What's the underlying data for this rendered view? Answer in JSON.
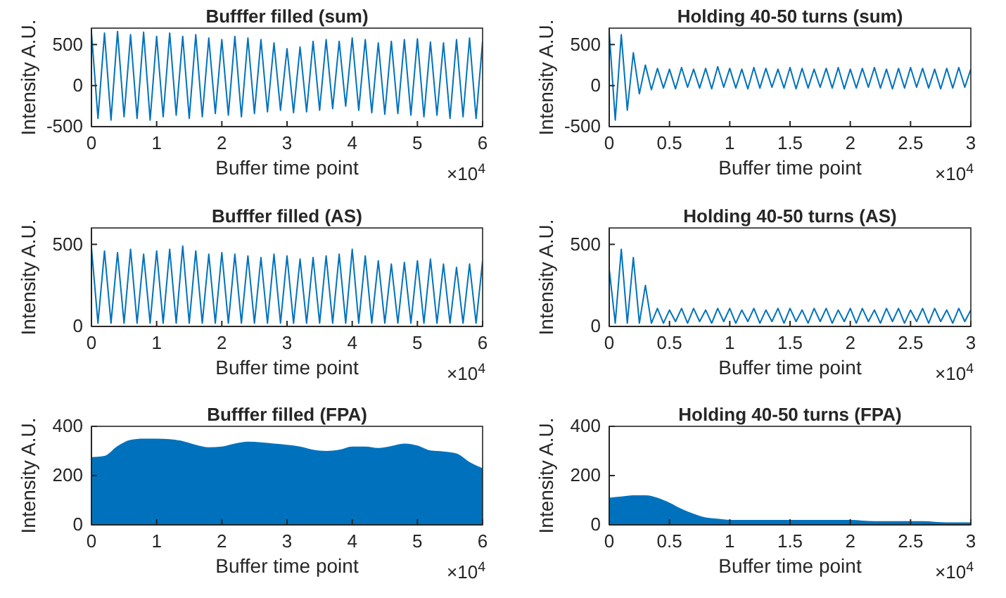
{
  "chart_data": [
    {
      "type": "line",
      "title": "Bufffer filled (sum)",
      "xlabel": "Buffer time point",
      "ylabel": "Intensity A.U.",
      "annotations": [
        "×10$^{4}$"
      ],
      "xlim": [
        0,
        6
      ],
      "xticks": [
        0,
        1,
        2,
        3,
        4,
        5,
        6
      ],
      "ylim": [
        -500,
        700
      ],
      "yticks": [
        -500,
        0,
        500
      ],
      "x": [
        0,
        0.1,
        0.2,
        0.3,
        0.4,
        0.5,
        0.6,
        0.7,
        0.8,
        0.9,
        1,
        1.1,
        1.2,
        1.3,
        1.4,
        1.5,
        1.6,
        1.7,
        1.8,
        1.9,
        2,
        2.1,
        2.2,
        2.3,
        2.4,
        2.5,
        2.6,
        2.7,
        2.8,
        2.9,
        3,
        3.1,
        3.2,
        3.3,
        3.4,
        3.5,
        3.6,
        3.7,
        3.8,
        3.9,
        4,
        4.1,
        4.2,
        4.3,
        4.4,
        4.5,
        4.6,
        4.7,
        4.8,
        4.9,
        5,
        5.1,
        5.2,
        5.3,
        5.4,
        5.5,
        5.6,
        5.7,
        5.8,
        5.9,
        6
      ],
      "series": [
        {
          "color": "#0072bd",
          "values": [
            650,
            -400,
            640,
            -420,
            660,
            -380,
            620,
            -400,
            650,
            -420,
            600,
            -380,
            640,
            -360,
            600,
            -400,
            620,
            -380,
            580,
            -340,
            560,
            -360,
            600,
            -380,
            580,
            -340,
            560,
            -320,
            520,
            -300,
            450,
            -330,
            470,
            -320,
            540,
            -300,
            560,
            -280,
            540,
            -250,
            580,
            -300,
            560,
            -330,
            520,
            -350,
            540,
            -340,
            560,
            -360,
            570,
            -380,
            530,
            -360,
            520,
            -400,
            560,
            -380,
            580,
            -400,
            540
          ]
        }
      ]
    },
    {
      "type": "line",
      "title": "Holding 40-50 turns (sum)",
      "xlabel": "Buffer time point",
      "ylabel": "Intensity A.U.",
      "annotations": [
        "×10$^{4}$"
      ],
      "xlim": [
        0,
        3
      ],
      "xticks": [
        0,
        0.5,
        1,
        1.5,
        2,
        2.5,
        3
      ],
      "ylim": [
        -500,
        700
      ],
      "yticks": [
        -500,
        0,
        500
      ],
      "x": [
        0,
        0.05,
        0.1,
        0.15,
        0.2,
        0.25,
        0.3,
        0.35,
        0.4,
        0.45,
        0.5,
        0.55,
        0.6,
        0.65,
        0.7,
        0.75,
        0.8,
        0.85,
        0.9,
        0.95,
        1,
        1.05,
        1.1,
        1.15,
        1.2,
        1.25,
        1.3,
        1.35,
        1.4,
        1.45,
        1.5,
        1.55,
        1.6,
        1.65,
        1.7,
        1.75,
        1.8,
        1.85,
        1.9,
        1.95,
        2,
        2.05,
        2.1,
        2.15,
        2.2,
        2.25,
        2.3,
        2.35,
        2.4,
        2.45,
        2.5,
        2.55,
        2.6,
        2.65,
        2.7,
        2.75,
        2.8,
        2.85,
        2.9,
        2.95,
        3
      ],
      "series": [
        {
          "color": "#0072bd",
          "values": [
            650,
            -420,
            620,
            -300,
            400,
            -100,
            250,
            -50,
            210,
            -30,
            200,
            -40,
            220,
            -20,
            200,
            -30,
            210,
            -40,
            230,
            -20,
            210,
            -30,
            200,
            -40,
            220,
            -30,
            210,
            -20,
            200,
            -30,
            220,
            -40,
            210,
            -30,
            200,
            -20,
            210,
            -30,
            220,
            -40,
            200,
            -30,
            210,
            -20,
            220,
            -30,
            200,
            -40,
            210,
            -30,
            220,
            -20,
            210,
            -30,
            200,
            -40,
            210,
            -30,
            220,
            -20,
            200
          ]
        }
      ]
    },
    {
      "type": "line",
      "title": "Bufffer filled (AS)",
      "xlabel": "Buffer time point",
      "ylabel": "Intensity A.U.",
      "annotations": [
        "×10$^{4}$"
      ],
      "xlim": [
        0,
        6
      ],
      "xticks": [
        0,
        1,
        2,
        3,
        4,
        5,
        6
      ],
      "ylim": [
        0,
        600
      ],
      "yticks": [
        0,
        500
      ],
      "x": [
        0,
        0.1,
        0.2,
        0.3,
        0.4,
        0.5,
        0.6,
        0.7,
        0.8,
        0.9,
        1,
        1.1,
        1.2,
        1.3,
        1.4,
        1.5,
        1.6,
        1.7,
        1.8,
        1.9,
        2,
        2.1,
        2.2,
        2.3,
        2.4,
        2.5,
        2.6,
        2.7,
        2.8,
        2.9,
        3,
        3.1,
        3.2,
        3.3,
        3.4,
        3.5,
        3.6,
        3.7,
        3.8,
        3.9,
        4,
        4.1,
        4.2,
        4.3,
        4.4,
        4.5,
        4.6,
        4.7,
        4.8,
        4.9,
        5,
        5.1,
        5.2,
        5.3,
        5.4,
        5.5,
        5.6,
        5.7,
        5.8,
        5.9,
        6
      ],
      "series": [
        {
          "color": "#0072bd",
          "values": [
            480,
            20,
            460,
            20,
            450,
            20,
            470,
            20,
            440,
            20,
            460,
            20,
            470,
            20,
            490,
            20,
            460,
            20,
            440,
            20,
            450,
            20,
            440,
            20,
            430,
            20,
            420,
            20,
            440,
            20,
            430,
            20,
            410,
            20,
            420,
            20,
            430,
            20,
            440,
            20,
            470,
            20,
            430,
            20,
            400,
            20,
            380,
            20,
            390,
            20,
            400,
            20,
            410,
            20,
            380,
            20,
            360,
            20,
            380,
            20,
            400
          ]
        }
      ]
    },
    {
      "type": "line",
      "title": "Holding 40-50 turns (AS)",
      "xlabel": "Buffer time point",
      "ylabel": "Intensity A.U.",
      "annotations": [
        "×10$^{4}$"
      ],
      "xlim": [
        0,
        3
      ],
      "xticks": [
        0,
        0.5,
        1,
        1.5,
        2,
        2.5,
        3
      ],
      "ylim": [
        0,
        600
      ],
      "yticks": [
        0,
        500
      ],
      "x": [
        0,
        0.05,
        0.1,
        0.15,
        0.2,
        0.25,
        0.3,
        0.35,
        0.4,
        0.45,
        0.5,
        0.55,
        0.6,
        0.65,
        0.7,
        0.75,
        0.8,
        0.85,
        0.9,
        0.95,
        1,
        1.05,
        1.1,
        1.15,
        1.2,
        1.25,
        1.3,
        1.35,
        1.4,
        1.45,
        1.5,
        1.55,
        1.6,
        1.65,
        1.7,
        1.75,
        1.8,
        1.85,
        1.9,
        1.95,
        2,
        2.05,
        2.1,
        2.15,
        2.2,
        2.25,
        2.3,
        2.35,
        2.4,
        2.45,
        2.5,
        2.55,
        2.6,
        2.65,
        2.7,
        2.75,
        2.8,
        2.85,
        2.9,
        2.95,
        3
      ],
      "series": [
        {
          "color": "#0072bd",
          "values": [
            350,
            20,
            470,
            20,
            420,
            20,
            250,
            20,
            110,
            20,
            100,
            30,
            110,
            20,
            110,
            30,
            100,
            20,
            110,
            30,
            110,
            20,
            100,
            30,
            110,
            20,
            100,
            30,
            110,
            20,
            110,
            30,
            100,
            20,
            110,
            30,
            110,
            20,
            100,
            30,
            110,
            20,
            110,
            30,
            100,
            20,
            110,
            30,
            110,
            20,
            100,
            30,
            110,
            20,
            110,
            30,
            100,
            20,
            110,
            30,
            100
          ]
        }
      ]
    },
    {
      "type": "area",
      "title": "Bufffer filled (FPA)",
      "xlabel": "Buffer time point",
      "ylabel": "Intensity A.U.",
      "annotations": [
        "×10$^{4}$"
      ],
      "xlim": [
        0,
        6
      ],
      "xticks": [
        0,
        1,
        2,
        3,
        4,
        5,
        6
      ],
      "ylim": [
        0,
        400
      ],
      "yticks": [
        0,
        200,
        400
      ],
      "x": [
        0,
        0.2,
        0.4,
        0.6,
        0.8,
        1,
        1.2,
        1.4,
        1.6,
        1.8,
        2,
        2.2,
        2.4,
        2.6,
        2.8,
        3,
        3.2,
        3.4,
        3.6,
        3.8,
        4,
        4.2,
        4.4,
        4.6,
        4.8,
        5,
        5.2,
        5.4,
        5.6,
        5.8,
        6
      ],
      "series": [
        {
          "color": "#0072bd",
          "values": [
            275,
            280,
            320,
            345,
            350,
            350,
            348,
            340,
            325,
            315,
            318,
            330,
            338,
            335,
            330,
            325,
            318,
            305,
            300,
            305,
            318,
            318,
            312,
            320,
            330,
            322,
            302,
            298,
            290,
            255,
            230
          ]
        }
      ]
    },
    {
      "type": "area",
      "title": "Holding 40-50 turns (FPA)",
      "xlabel": "Buffer time point",
      "ylabel": "Intensity A.U.",
      "annotations": [
        "×10$^{4}$"
      ],
      "xlim": [
        0,
        3
      ],
      "xticks": [
        0,
        0.5,
        1,
        1.5,
        2,
        2.5,
        3
      ],
      "ylim": [
        0,
        400
      ],
      "yticks": [
        0,
        200,
        400
      ],
      "x": [
        0,
        0.1,
        0.2,
        0.3,
        0.4,
        0.5,
        0.6,
        0.7,
        0.8,
        0.9,
        1,
        1.2,
        1.4,
        1.6,
        1.8,
        2,
        2.2,
        2.4,
        2.6,
        2.8,
        3
      ],
      "series": [
        {
          "color": "#0072bd",
          "values": [
            110,
            115,
            120,
            120,
            110,
            90,
            65,
            45,
            30,
            25,
            20,
            20,
            20,
            20,
            20,
            20,
            15,
            15,
            15,
            10,
            10
          ]
        }
      ]
    }
  ]
}
